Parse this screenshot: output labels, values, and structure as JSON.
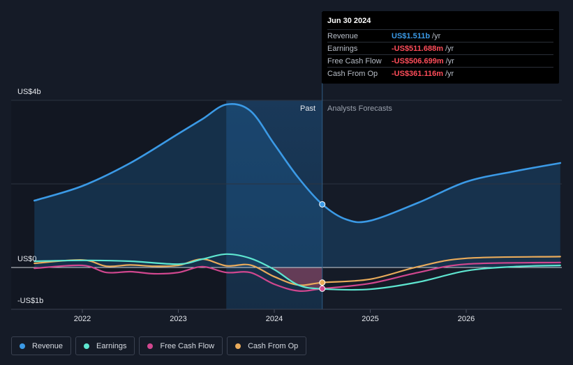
{
  "tooltip": {
    "date": "Jun 30 2024",
    "unit": "/yr",
    "rows": [
      {
        "label": "Revenue",
        "value": "US$1.511b",
        "color": "#3b9ae6"
      },
      {
        "label": "Earnings",
        "value": "-US$511.688m",
        "color": "#ff4d5a"
      },
      {
        "label": "Free Cash Flow",
        "value": "-US$506.699m",
        "color": "#ff4d5a"
      },
      {
        "label": "Cash From Op",
        "value": "-US$361.116m",
        "color": "#ff4d5a"
      }
    ]
  },
  "labels": {
    "past": "Past",
    "forecast": "Analysts Forecasts"
  },
  "chart_data": {
    "type": "line",
    "y_unit": "US$ billions",
    "ylim": [
      -1,
      4
    ],
    "y_ticks": [
      {
        "value": 4,
        "label": "US$4b"
      },
      {
        "value": 0,
        "label": "US$0"
      },
      {
        "value": -1,
        "label": "-US$1b"
      }
    ],
    "x_ticks": [
      {
        "value": 2022,
        "label": "2022"
      },
      {
        "value": 2023,
        "label": "2023"
      },
      {
        "value": 2024,
        "label": "2024"
      },
      {
        "value": 2025,
        "label": "2025"
      },
      {
        "value": 2026,
        "label": "2026"
      }
    ],
    "xlim": [
      2021.25,
      2026.98
    ],
    "past_end": 2024.5,
    "highlight_start": 2023.5,
    "grid": true,
    "legend_position": "bottom-left",
    "series": [
      {
        "name": "Revenue",
        "color": "#3b9ae6",
        "fill": true,
        "points": [
          [
            2021.5,
            1.6
          ],
          [
            2022,
            1.95
          ],
          [
            2022.5,
            2.5
          ],
          [
            2023,
            3.2
          ],
          [
            2023.25,
            3.55
          ],
          [
            2023.5,
            3.9
          ],
          [
            2023.75,
            3.75
          ],
          [
            2024,
            2.95
          ],
          [
            2024.25,
            2.15
          ],
          [
            2024.5,
            1.511
          ],
          [
            2024.75,
            1.15
          ],
          [
            2025,
            1.12
          ],
          [
            2025.5,
            1.55
          ],
          [
            2026,
            2.05
          ],
          [
            2026.5,
            2.3
          ],
          [
            2026.98,
            2.5
          ]
        ],
        "marker": [
          2024.5,
          1.511
        ]
      },
      {
        "name": "Earnings",
        "color": "#5ee6d0",
        "points": [
          [
            2021.5,
            0.15
          ],
          [
            2022,
            0.17
          ],
          [
            2022.5,
            0.15
          ],
          [
            2023,
            0.08
          ],
          [
            2023.25,
            0.2
          ],
          [
            2023.5,
            0.32
          ],
          [
            2023.75,
            0.22
          ],
          [
            2024,
            -0.05
          ],
          [
            2024.25,
            -0.42
          ],
          [
            2024.5,
            -0.511688
          ],
          [
            2025,
            -0.52
          ],
          [
            2025.5,
            -0.35
          ],
          [
            2026,
            -0.08
          ],
          [
            2026.5,
            0.02
          ],
          [
            2026.98,
            0.05
          ]
        ]
      },
      {
        "name": "Free Cash Flow",
        "color": "#d1478f",
        "points": [
          [
            2021.5,
            -0.02
          ],
          [
            2022,
            0.05
          ],
          [
            2022.25,
            -0.12
          ],
          [
            2022.5,
            -0.1
          ],
          [
            2022.75,
            -0.15
          ],
          [
            2023,
            -0.12
          ],
          [
            2023.25,
            0.02
          ],
          [
            2023.5,
            -0.12
          ],
          [
            2023.75,
            -0.12
          ],
          [
            2024,
            -0.4
          ],
          [
            2024.25,
            -0.56
          ],
          [
            2024.5,
            -0.506699
          ],
          [
            2025,
            -0.38
          ],
          [
            2025.5,
            -0.12
          ],
          [
            2026,
            0.08
          ],
          [
            2026.98,
            0.12
          ]
        ]
      },
      {
        "name": "Cash From Op",
        "color": "#e9ab5b",
        "points": [
          [
            2021.5,
            0.1
          ],
          [
            2022,
            0.18
          ],
          [
            2022.25,
            0.03
          ],
          [
            2022.5,
            0.06
          ],
          [
            2022.75,
            0.03
          ],
          [
            2023,
            0.05
          ],
          [
            2023.25,
            0.2
          ],
          [
            2023.5,
            0.04
          ],
          [
            2023.75,
            0.06
          ],
          [
            2024,
            -0.22
          ],
          [
            2024.25,
            -0.42
          ],
          [
            2024.5,
            -0.361116
          ],
          [
            2025,
            -0.28
          ],
          [
            2025.5,
            0.02
          ],
          [
            2026,
            0.22
          ],
          [
            2026.98,
            0.26
          ]
        ]
      }
    ]
  },
  "legend": [
    {
      "label": "Revenue",
      "color": "#3b9ae6"
    },
    {
      "label": "Earnings",
      "color": "#5ee6d0"
    },
    {
      "label": "Free Cash Flow",
      "color": "#d1478f"
    },
    {
      "label": "Cash From Op",
      "color": "#e9ab5b"
    }
  ]
}
